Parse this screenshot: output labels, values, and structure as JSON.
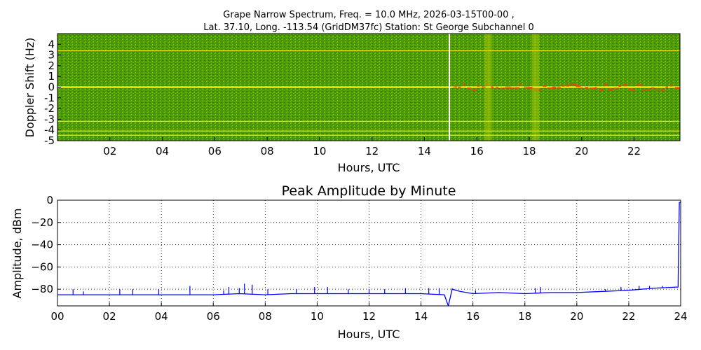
{
  "header": {
    "title_line1": "Grape Narrow Spectrum, Freq. = 10.0 MHz, 2026-03-15T00-00 ,",
    "title_line2": "Lat.  37.10, Long. -113.54 (GridDM37fc) Station: St George Subchannel 0"
  },
  "colors": {
    "spectrum_bg": "#4a9a08",
    "spectrum_line": "#ffe600",
    "spectrum_hot": "#ff3a00",
    "gap_line": "#ffffff",
    "amplitude_line": "#0000ff",
    "grid": "#000000"
  },
  "chart_data": [
    {
      "type": "heatmap",
      "title": "",
      "xlabel": "Hours, UTC",
      "ylabel": "Doppler Shift (Hz)",
      "xlim": [
        0,
        23.75
      ],
      "ylim": [
        -5,
        5
      ],
      "x_ticks": [
        "02",
        "04",
        "06",
        "08",
        "10",
        "12",
        "14",
        "16",
        "18",
        "20",
        "22"
      ],
      "x_tick_values": [
        2,
        4,
        6,
        8,
        10,
        12,
        14,
        16,
        18,
        20,
        22
      ],
      "y_ticks": [
        "4",
        "3",
        "2",
        "1",
        "0",
        "-1",
        "-2",
        "-3",
        "-4",
        "-5"
      ],
      "y_tick_values": [
        4,
        3,
        2,
        1,
        0,
        -1,
        -2,
        -3,
        -4,
        -5
      ],
      "carrier_hz": 0.0,
      "harmonic_lines_hz": [
        3.4,
        -3.2,
        -4.1,
        -4.5
      ],
      "data_gap_hour": 14.95,
      "grid": false
    },
    {
      "type": "line",
      "title": "Peak Amplitude by Minute",
      "xlabel": "Hours, UTC",
      "ylabel": "Amplitude, dBm",
      "xlim": [
        0,
        24
      ],
      "ylim": [
        -95,
        0
      ],
      "x_ticks": [
        "00",
        "02",
        "04",
        "06",
        "08",
        "10",
        "12",
        "14",
        "16",
        "18",
        "20",
        "22",
        "24"
      ],
      "x_tick_values": [
        0,
        2,
        4,
        6,
        8,
        10,
        12,
        14,
        16,
        18,
        20,
        22,
        24
      ],
      "y_ticks": [
        "0",
        "−20",
        "−40",
        "−60",
        "−80"
      ],
      "y_tick_values": [
        0,
        -20,
        -40,
        -60,
        -80
      ],
      "grid": true,
      "series": [
        {
          "x": [
            0,
            1,
            2,
            3,
            4,
            5,
            6,
            7,
            8,
            9,
            10,
            11,
            12,
            13,
            14,
            14.9,
            15.05,
            15.2,
            15.5,
            16,
            17,
            18,
            19,
            20,
            21,
            22,
            23,
            23.9,
            23.95,
            24
          ],
          "values": [
            -85,
            -85,
            -85,
            -85,
            -85,
            -85,
            -85,
            -84,
            -85,
            -84,
            -84,
            -84,
            -84,
            -84,
            -84,
            -85,
            -95,
            -80,
            -82,
            -84,
            -83,
            -84,
            -83,
            -83,
            -82,
            -81,
            -79,
            -78,
            -2,
            -2
          ],
          "spikes": [
            {
              "x": 0.6,
              "y": -80
            },
            {
              "x": 1.0,
              "y": -82
            },
            {
              "x": 2.4,
              "y": -80
            },
            {
              "x": 2.9,
              "y": -80
            },
            {
              "x": 3.9,
              "y": -80
            },
            {
              "x": 5.1,
              "y": -77
            },
            {
              "x": 6.4,
              "y": -81
            },
            {
              "x": 6.6,
              "y": -78
            },
            {
              "x": 7.0,
              "y": -79
            },
            {
              "x": 7.2,
              "y": -75
            },
            {
              "x": 7.5,
              "y": -76
            },
            {
              "x": 8.1,
              "y": -80
            },
            {
              "x": 9.2,
              "y": -80
            },
            {
              "x": 9.9,
              "y": -78
            },
            {
              "x": 10.4,
              "y": -78
            },
            {
              "x": 11.2,
              "y": -80
            },
            {
              "x": 12.0,
              "y": -80
            },
            {
              "x": 12.6,
              "y": -80
            },
            {
              "x": 13.4,
              "y": -79
            },
            {
              "x": 14.3,
              "y": -79
            },
            {
              "x": 14.7,
              "y": -79
            },
            {
              "x": 15.2,
              "y": -79
            },
            {
              "x": 16.1,
              "y": -81
            },
            {
              "x": 18.4,
              "y": -79
            },
            {
              "x": 18.6,
              "y": -78
            },
            {
              "x": 21.1,
              "y": -80
            },
            {
              "x": 21.7,
              "y": -78
            },
            {
              "x": 22.4,
              "y": -77
            },
            {
              "x": 22.8,
              "y": -77
            },
            {
              "x": 23.3,
              "y": -77
            }
          ]
        }
      ]
    }
  ]
}
